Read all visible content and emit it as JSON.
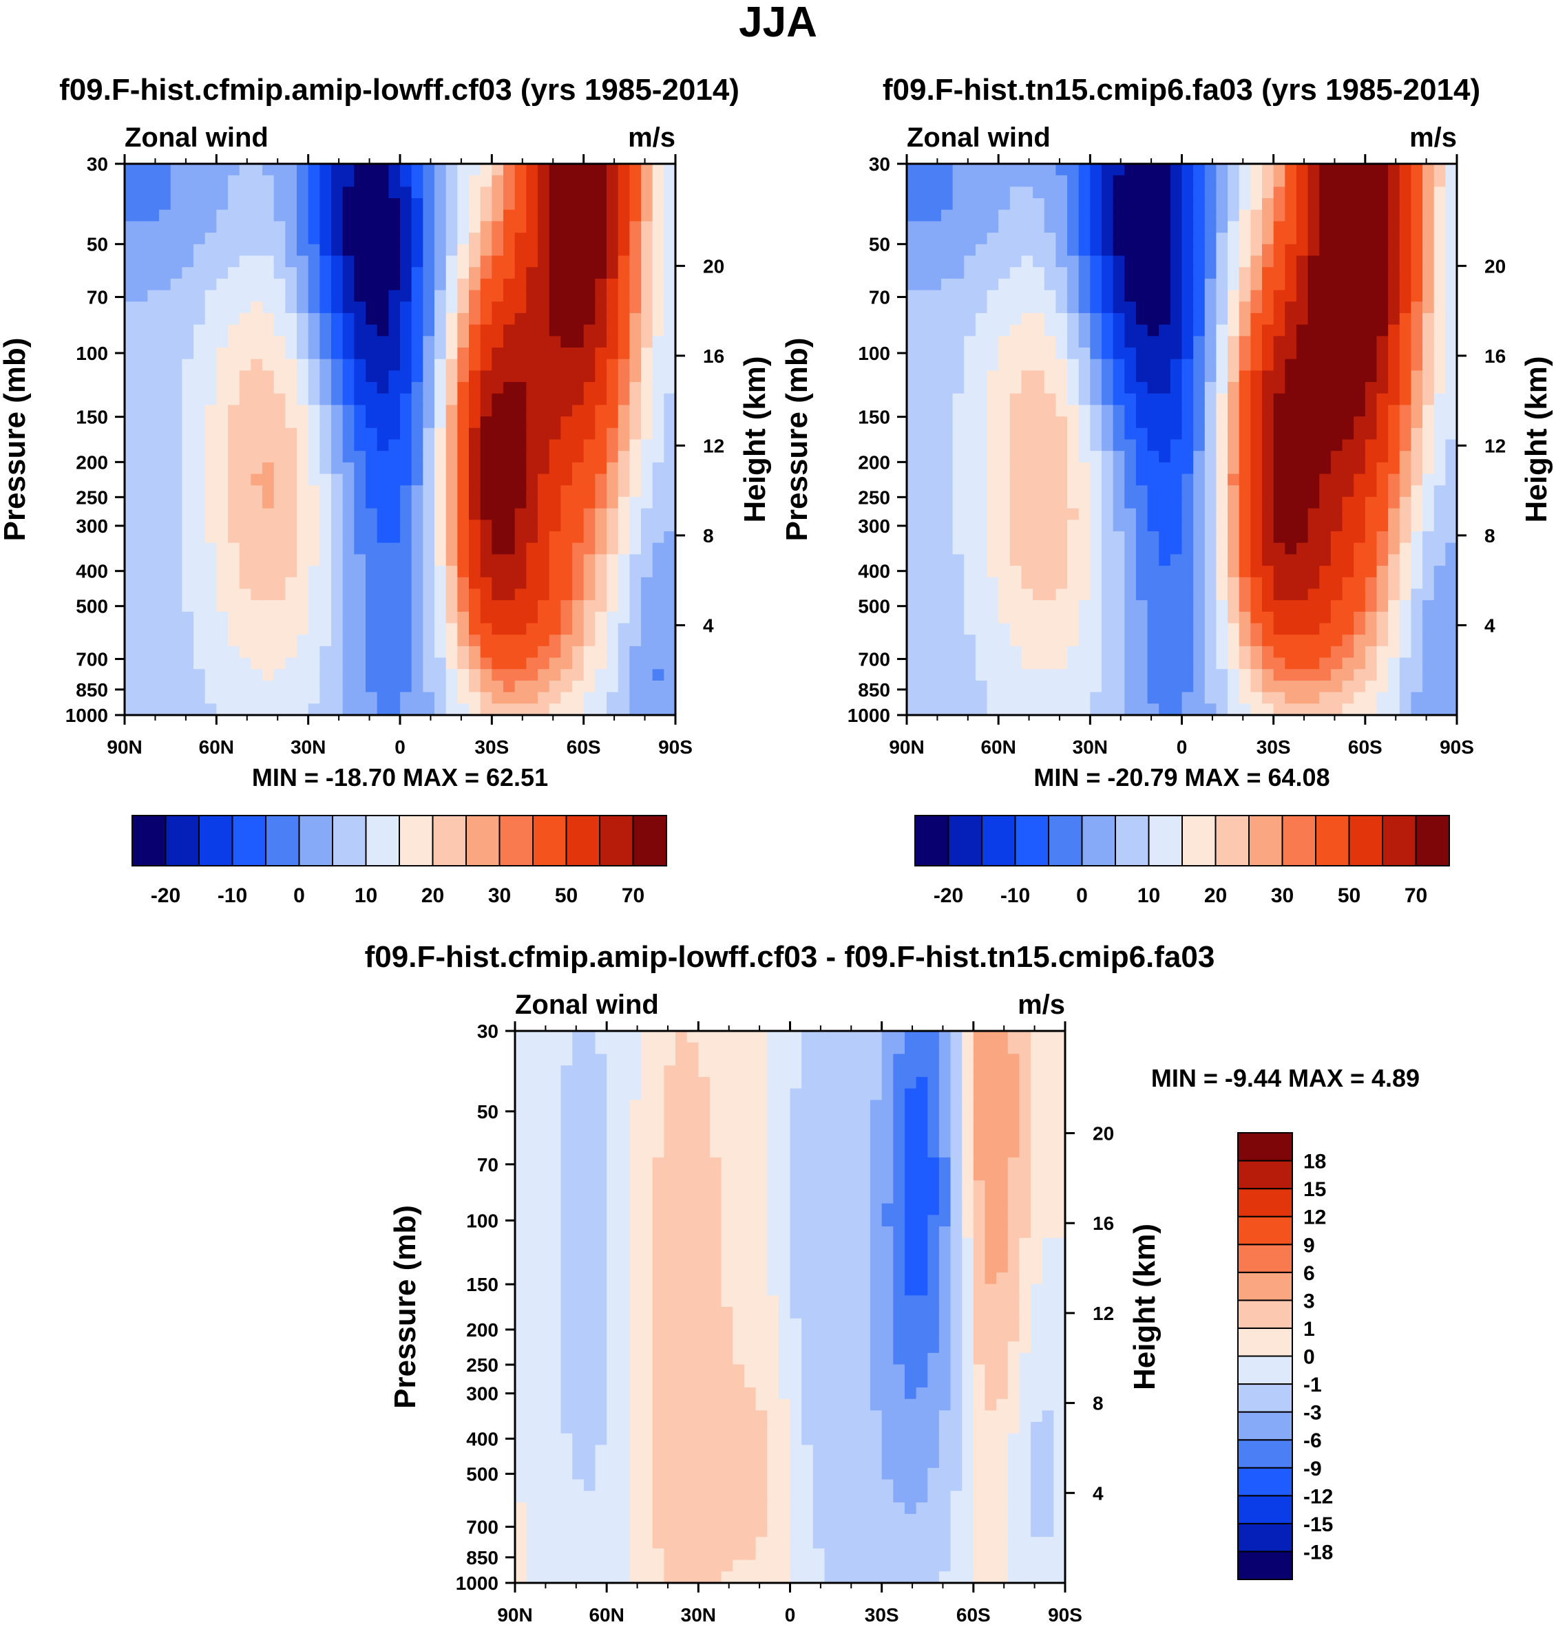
{
  "page_title": "JJA",
  "chart_data": [
    {
      "type": "heatmap",
      "title": "f09.F-hist.cfmip.amip-lowff.cf03 (yrs 1985-2014)",
      "field_label": "Zonal wind",
      "units": "m/s",
      "xlabel": "",
      "ylabel": "Pressure (mb)",
      "ylabel_right": "Height (km)",
      "x_ticks": [
        "90N",
        "60N",
        "30N",
        "0",
        "30S",
        "60S",
        "90S"
      ],
      "x_range": [
        90,
        -90
      ],
      "y_ticks": [
        30,
        50,
        70,
        100,
        150,
        200,
        250,
        300,
        400,
        500,
        700,
        850,
        1000
      ],
      "y_range": [
        30,
        1000
      ],
      "height_ticks": [
        20,
        16,
        12,
        8,
        4
      ],
      "stats": "MIN = -18.70  MAX =  62.51",
      "colorbar": {
        "orientation": "horizontal",
        "colors": [
          "#08006f",
          "#0420b8",
          "#0a3ce8",
          "#1e5cff",
          "#4a7ff5",
          "#86aaf8",
          "#b6ccfb",
          "#deeafc",
          "#fde7d8",
          "#fcc8b0",
          "#f9a681",
          "#f87a4e",
          "#f5531e",
          "#e2350c",
          "#b71c0a",
          "#7e0608"
        ],
        "tick_labels": [
          "-20",
          "-10",
          "0",
          "10",
          "20",
          "30",
          "50",
          "70"
        ]
      },
      "features": [
        {
          "kind": "easterly core",
          "lat": -18,
          "pressure": 30,
          "value_approx": -18.7
        },
        {
          "kind": "westerly jet",
          "lat": -30,
          "pressure": 200,
          "value_approx": 45
        },
        {
          "kind": "polar night jet",
          "lat": -60,
          "pressure": 30,
          "value_approx": 62.5
        },
        {
          "kind": "NH westerly jet",
          "lat": 43,
          "pressure": 200,
          "value_approx": 22
        }
      ]
    },
    {
      "type": "heatmap",
      "title": "f09.F-hist.tn15.cmip6.fa03 (yrs 1985-2014)",
      "field_label": "Zonal wind",
      "units": "m/s",
      "xlabel": "",
      "ylabel": "Pressure (mb)",
      "ylabel_right": "Height (km)",
      "x_ticks": [
        "90N",
        "60N",
        "30N",
        "0",
        "30S",
        "60S",
        "90S"
      ],
      "x_range": [
        90,
        -90
      ],
      "y_ticks": [
        30,
        50,
        70,
        100,
        150,
        200,
        250,
        300,
        400,
        500,
        700,
        850,
        1000
      ],
      "y_range": [
        30,
        1000
      ],
      "height_ticks": [
        20,
        16,
        12,
        8,
        4
      ],
      "stats": "MIN = -20.79  MAX =  64.08",
      "colorbar": {
        "orientation": "horizontal",
        "colors": [
          "#08006f",
          "#0420b8",
          "#0a3ce8",
          "#1e5cff",
          "#4a7ff5",
          "#86aaf8",
          "#b6ccfb",
          "#deeafc",
          "#fde7d8",
          "#fcc8b0",
          "#f9a681",
          "#f87a4e",
          "#f5531e",
          "#e2350c",
          "#b71c0a",
          "#7e0608"
        ],
        "tick_labels": [
          "-20",
          "-10",
          "0",
          "10",
          "20",
          "30",
          "50",
          "70"
        ]
      },
      "features": [
        {
          "kind": "easterly core",
          "lat": -18,
          "pressure": 30,
          "value_approx": -20.8
        },
        {
          "kind": "westerly jet",
          "lat": -30,
          "pressure": 200,
          "value_approx": 42
        },
        {
          "kind": "polar night jet",
          "lat": -60,
          "pressure": 30,
          "value_approx": 64.1
        },
        {
          "kind": "NH westerly jet",
          "lat": 43,
          "pressure": 200,
          "value_approx": 22
        }
      ]
    },
    {
      "type": "heatmap",
      "title": "f09.F-hist.cfmip.amip-lowff.cf03 - f09.F-hist.tn15.cmip6.fa03",
      "field_label": "Zonal wind",
      "units": "m/s",
      "xlabel": "",
      "ylabel": "Pressure (mb)",
      "ylabel_right": "Height (km)",
      "x_ticks": [
        "90N",
        "60N",
        "30N",
        "0",
        "30S",
        "60S",
        "90S"
      ],
      "x_range": [
        90,
        -90
      ],
      "y_ticks": [
        30,
        50,
        70,
        100,
        150,
        200,
        250,
        300,
        400,
        500,
        700,
        850,
        1000
      ],
      "y_range": [
        30,
        1000
      ],
      "height_ticks": [
        20,
        16,
        12,
        8,
        4
      ],
      "stats": "MIN =  -9.44  MAX =   4.89",
      "colorbar": {
        "orientation": "vertical",
        "colors": [
          "#08006f",
          "#0420b8",
          "#0a3ce8",
          "#1e5cff",
          "#4a7ff5",
          "#86aaf8",
          "#b6ccfb",
          "#deeafc",
          "#fde7d8",
          "#fcc8b0",
          "#f9a681",
          "#f87a4e",
          "#f5531e",
          "#e2350c",
          "#b71c0a",
          "#7e0608"
        ],
        "tick_labels": [
          "-18",
          "-15",
          "-12",
          "-9",
          "-6",
          "-3",
          "-1",
          "0",
          "1",
          "3",
          "6",
          "9",
          "12",
          "15",
          "18"
        ]
      },
      "features": [
        {
          "kind": "negative anomaly",
          "lat": -45,
          "pressure": 100,
          "value_approx": -9.44
        },
        {
          "kind": "positive anomaly",
          "lat": -67,
          "pressure": 50,
          "value_approx": 4.89
        }
      ]
    }
  ]
}
